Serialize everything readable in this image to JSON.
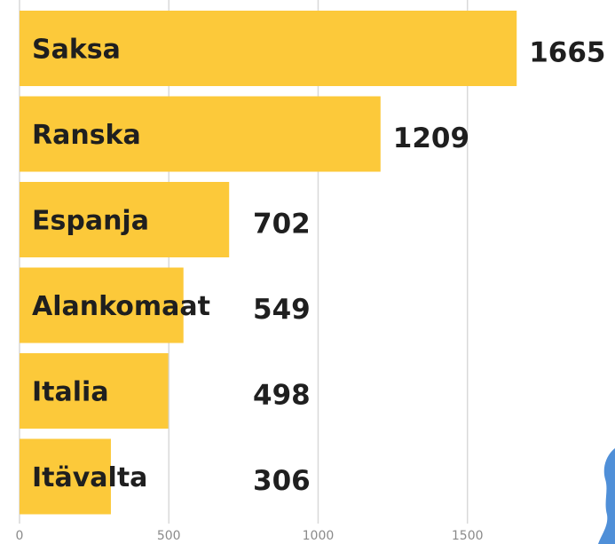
{
  "chart_data": {
    "type": "bar",
    "orientation": "horizontal",
    "categories": [
      "Saksa",
      "Ranska",
      "Espanja",
      "Alankomaat",
      "Italia",
      "Itävalta"
    ],
    "values": [
      1665,
      1209,
      702,
      549,
      498,
      306
    ],
    "value_labels": [
      "1665",
      "1209",
      "702",
      "549",
      "498",
      "306"
    ],
    "xticks": [
      0,
      500,
      1000,
      1500
    ],
    "xtick_labels": [
      "0",
      "500",
      "1000",
      "1500"
    ],
    "xlim": [
      0,
      1700
    ],
    "grid": true,
    "legend": "none",
    "title": "",
    "xlabel": "",
    "ylabel": ""
  },
  "colors": {
    "bar": "#fcc93a",
    "grid": "#d9d9d9",
    "text": "#1f1f1f",
    "tick": "#8a8a8a",
    "decoration": "#4f8fd8"
  }
}
